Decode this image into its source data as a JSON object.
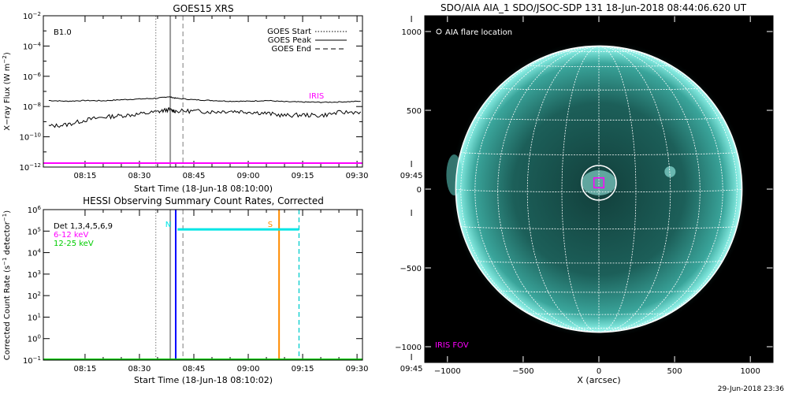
{
  "chart_data": [
    {
      "type": "line",
      "title": "GOES15 XRS",
      "ylabel": "X-ray Flux (W m^-2)",
      "xlabel": "Start Time (18-Jun-18 08:10:00)",
      "x_ticks": [
        "08:15",
        "08:30",
        "08:45",
        "09:00",
        "09:15",
        "09:30",
        "09:45"
      ],
      "x_range_minutes": [
        8.5,
        96.5
      ],
      "y_log": true,
      "y_range": [
        1e-12,
        0.01
      ],
      "y_tick_exponents": [
        -12,
        -10,
        -8,
        -6,
        -4,
        -2
      ],
      "goes_class_label": "B1.0",
      "vertical_markers": [
        {
          "name": "GOES Start",
          "minute": 39.5,
          "style": "dotted",
          "color": "#999999"
        },
        {
          "name": "GOES Peak",
          "minute": 43.5,
          "style": "solid",
          "color": "#999999"
        },
        {
          "name": "GOES End",
          "minute": 47.0,
          "style": "dashed",
          "color": "#999999"
        }
      ],
      "legend": [
        {
          "label": "GOES Start",
          "style": "dotted"
        },
        {
          "label": "GOES Peak",
          "style": "solid"
        },
        {
          "label": "GOES End",
          "style": "dashed"
        }
      ],
      "iris_label": "IRIS",
      "iris_level": 1e-12,
      "series": [
        {
          "id": "long",
          "color": "#000000",
          "x": [
            10,
            15,
            20,
            25,
            30,
            35,
            40,
            43,
            45,
            50,
            55,
            60,
            65,
            70,
            75,
            80,
            85,
            90,
            96
          ],
          "y_log10": [
            -7.6,
            -7.65,
            -7.6,
            -7.62,
            -7.55,
            -7.5,
            -7.45,
            -7.35,
            -7.45,
            -7.55,
            -7.6,
            -7.65,
            -7.65,
            -7.6,
            -7.68,
            -7.7,
            -7.72,
            -7.7,
            -7.65
          ]
        },
        {
          "id": "short",
          "color": "#000000",
          "x": [
            10,
            15,
            20,
            25,
            30,
            35,
            40,
            43,
            45,
            50,
            55,
            60,
            65,
            70,
            75,
            80,
            85,
            90,
            96
          ],
          "y_log10": [
            -9.3,
            -9.2,
            -8.9,
            -8.7,
            -8.6,
            -8.5,
            -8.35,
            -8.2,
            -8.3,
            -8.3,
            -8.35,
            -8.3,
            -8.35,
            -8.45,
            -8.6,
            -8.55,
            -8.6,
            -8.4,
            -8.35
          ]
        }
      ]
    },
    {
      "type": "line",
      "title": "HESSI Observing Summary Count Rates, Corrected",
      "ylabel": "Corrected Count Rate (s^-1 detector^-1)",
      "xlabel": "Start Time (18-Jun-18 08:10:02)",
      "x_ticks": [
        "08:15",
        "08:30",
        "08:45",
        "09:00",
        "09:15",
        "09:30",
        "09:45"
      ],
      "x_range_minutes": [
        8.5,
        96.5
      ],
      "y_log": true,
      "y_range": [
        0.1,
        1000000.0
      ],
      "y_tick_exponents": [
        -1,
        0,
        1,
        2,
        3,
        4,
        5,
        6
      ],
      "legend": [
        {
          "label": "Det 1,3,4,5,6,9",
          "color": "#000000"
        },
        {
          "label": "6-12 keV",
          "color": "#ff00ff"
        },
        {
          "label": "12-25 keV",
          "color": "#00cc00"
        }
      ],
      "vertical_markers": [
        {
          "name": "GOES Start",
          "minute": 39.5,
          "style": "dotted",
          "color": "#999999"
        },
        {
          "name": "GOES Peak",
          "minute": 43.5,
          "style": "solid",
          "color": "#999999"
        },
        {
          "name": "GOES End",
          "minute": 47.0,
          "style": "dashed",
          "color": "#999999"
        },
        {
          "name": "night start",
          "minute": 45.0,
          "style": "solid",
          "color": "#0000ff"
        },
        {
          "name": "SAA start",
          "minute": 73.5,
          "style": "solid",
          "color": "#ff8c00"
        },
        {
          "name": "night end",
          "minute": 79.0,
          "style": "dashed",
          "color": "#00cccc"
        }
      ],
      "flag_bars": [
        {
          "label": "N",
          "color": "#00e5e5",
          "x_start": 45.5,
          "x_end": 79.0,
          "y": 120000.0
        },
        {
          "label": "S",
          "color": "#ff8c00",
          "x_start": 73.5,
          "x_end": 73.5,
          "y": 120000.0
        }
      ],
      "baseline": {
        "color": "#00cc00",
        "value": 0.1
      }
    },
    {
      "type": "heatmap",
      "title": "SDO/AIA AIA_1 SDO/JSOC-SDP 131 18-Jun-2018 08:44:06.620 UT",
      "xlabel": "X (arcsec)",
      "x_range": [
        -1150,
        1150
      ],
      "y_range": [
        -1100,
        1100
      ],
      "x_ticks": [
        -1000,
        -500,
        0,
        500,
        1000
      ],
      "y_ticks": [
        -1000,
        -500,
        0,
        500,
        1000
      ],
      "solar_radius_arcsec": 945,
      "grid": true,
      "flare_location": {
        "x": 0,
        "y": 40
      },
      "iris_fov_box": {
        "x": 0,
        "y": 40,
        "half_width": 55
      },
      "legend_label": "AIA flare location",
      "iris_fov_label": "IRIS FOV",
      "colors": {
        "disk": "#1f6b64",
        "limb": "#8ff0e8",
        "background": "#000000",
        "grid": "#ffffff",
        "iris": "#ff00ff"
      }
    }
  ],
  "footer_timestamp": "29-Jun-2018 23:36"
}
